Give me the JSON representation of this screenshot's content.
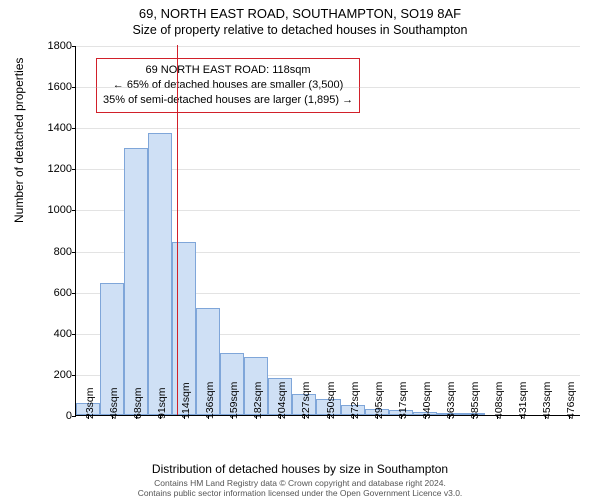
{
  "chart": {
    "type": "histogram",
    "title_line1": "69, NORTH EAST ROAD, SOUTHAMPTON, SO19 8AF",
    "title_line2": "Size of property relative to detached houses in Southampton",
    "title_fontsize": 13,
    "xlabel": "Distribution of detached houses by size in Southampton",
    "ylabel": "Number of detached properties",
    "label_fontsize": 12,
    "background_color": "#ffffff",
    "grid_color": "#b0b0b0",
    "bar_fill": "#cfe0f5",
    "bar_border": "#7fa6d9",
    "marker_color": "#d1202a",
    "ylim": [
      0,
      1800
    ],
    "yticks": [
      0,
      200,
      400,
      600,
      800,
      1000,
      1200,
      1400,
      1600,
      1800
    ],
    "xtick_labels": [
      "23sqm",
      "46sqm",
      "68sqm",
      "91sqm",
      "114sqm",
      "136sqm",
      "159sqm",
      "182sqm",
      "204sqm",
      "227sqm",
      "250sqm",
      "272sqm",
      "295sqm",
      "317sqm",
      "340sqm",
      "363sqm",
      "385sqm",
      "408sqm",
      "431sqm",
      "453sqm",
      "476sqm"
    ],
    "values": [
      60,
      640,
      1300,
      1370,
      840,
      520,
      300,
      280,
      180,
      100,
      80,
      50,
      30,
      25,
      15,
      10,
      10,
      0,
      0,
      0,
      0
    ],
    "marker_value": 118,
    "marker_x_min": 23,
    "marker_x_max": 498,
    "annotation": {
      "line1": "69 NORTH EAST ROAD: 118sqm",
      "line2": "← 65% of detached houses are smaller (3,500)",
      "line3": "35% of semi-detached houses are larger (1,895) →",
      "fontsize": 11
    },
    "footer_line1": "Contains HM Land Registry data © Crown copyright and database right 2024.",
    "footer_line2": "Contains public sector information licensed under the Open Government Licence v3.0."
  }
}
